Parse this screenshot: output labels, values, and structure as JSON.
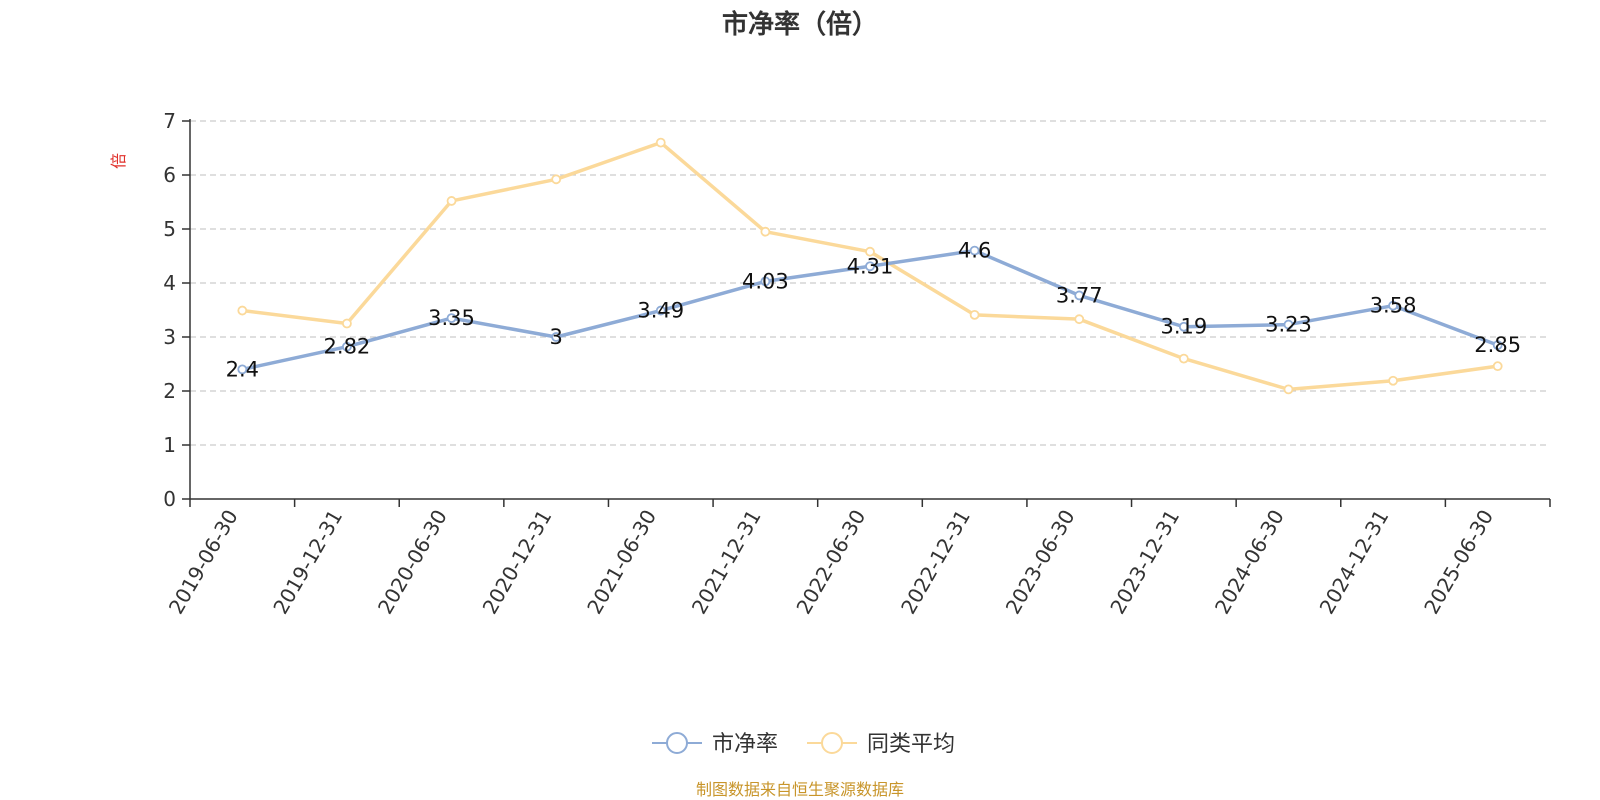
{
  "chart_data": {
    "type": "line",
    "title": "市净率（倍）",
    "ylabel": "倍",
    "xlabel": "",
    "categories": [
      "2019-06-30",
      "2019-12-31",
      "2020-06-30",
      "2020-12-31",
      "2021-06-30",
      "2021-12-31",
      "2022-06-30",
      "2022-12-31",
      "2023-06-30",
      "2023-12-31",
      "2024-06-30",
      "2024-12-31",
      "2025-06-30"
    ],
    "ylim": [
      0,
      7
    ],
    "yticks": [
      "0",
      "1",
      "2",
      "3",
      "4",
      "5",
      "6",
      "7"
    ],
    "grid": true,
    "legend_position": "bottom",
    "series": [
      {
        "name": "市净率",
        "color": "#8eabd6",
        "values": [
          2.4,
          2.82,
          3.35,
          3,
          3.49,
          4.03,
          4.31,
          4.6,
          3.77,
          3.19,
          3.23,
          3.58,
          2.85
        ],
        "labels": [
          "2.4",
          "2.82",
          "3.35",
          "3",
          "3.49",
          "4.03",
          "4.31",
          "4.6",
          "3.77",
          "3.19",
          "3.23",
          "3.58",
          "2.85"
        ]
      },
      {
        "name": "同类平均",
        "color": "#fbd99a",
        "values": [
          3.49,
          3.25,
          5.52,
          5.92,
          6.6,
          4.95,
          4.58,
          3.41,
          3.33,
          2.6,
          2.03,
          2.19,
          2.46
        ]
      }
    ]
  },
  "source_note": "制图数据来自恒生聚源数据库"
}
